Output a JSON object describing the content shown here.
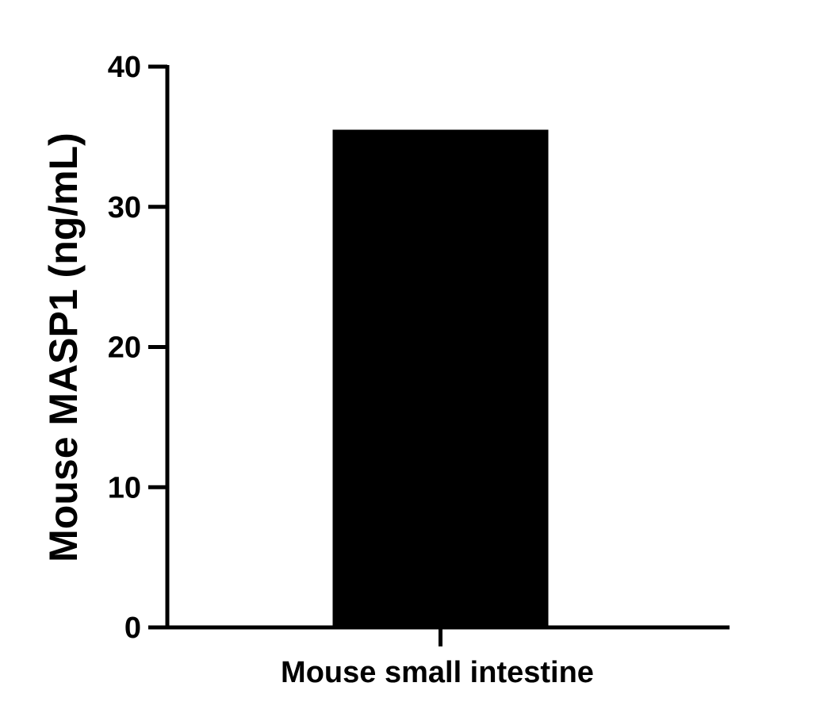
{
  "chart_data": {
    "type": "bar",
    "categories": [
      "Mouse small intestine"
    ],
    "values": [
      35.5
    ],
    "title": "",
    "xlabel": "",
    "ylabel": "Mouse MASP1 (ng/mL)",
    "ylim": [
      0,
      40
    ],
    "yticks": [
      0,
      10,
      20,
      30,
      40
    ],
    "ytick_labels": [
      "0",
      "10",
      "20",
      "30",
      "40"
    ],
    "grid": false,
    "bar_color": "#000000",
    "axis_color": "#000000"
  }
}
